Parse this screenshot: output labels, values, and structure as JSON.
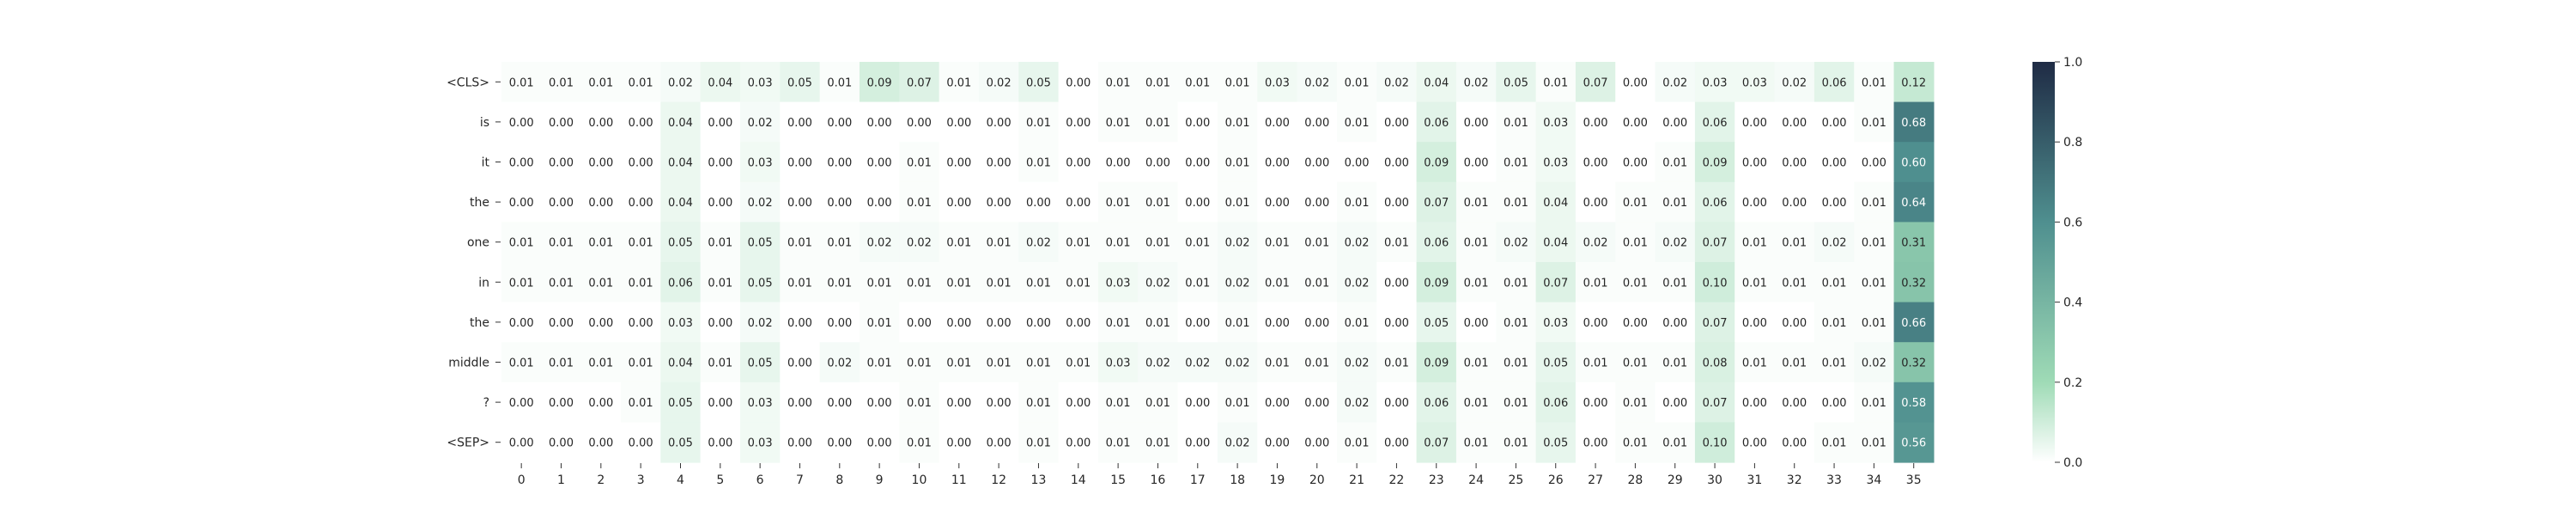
{
  "chart_data": {
    "type": "heatmap",
    "rows": [
      "<CLS>",
      "is",
      "it",
      "the",
      "one",
      "in",
      "the",
      "middle",
      "?",
      "<SEP>"
    ],
    "columns": [
      "0",
      "1",
      "2",
      "3",
      "4",
      "5",
      "6",
      "7",
      "8",
      "9",
      "10",
      "11",
      "12",
      "13",
      "14",
      "15",
      "16",
      "17",
      "18",
      "19",
      "20",
      "21",
      "22",
      "23",
      "24",
      "25",
      "26",
      "27",
      "28",
      "29",
      "30",
      "31",
      "32",
      "33",
      "34",
      "35"
    ],
    "values": [
      [
        0.01,
        0.01,
        0.01,
        0.01,
        0.02,
        0.04,
        0.03,
        0.05,
        0.01,
        0.09,
        0.07,
        0.01,
        0.02,
        0.05,
        0.0,
        0.01,
        0.01,
        0.01,
        0.01,
        0.03,
        0.02,
        0.01,
        0.02,
        0.04,
        0.02,
        0.05,
        0.01,
        0.07,
        0.0,
        0.02,
        0.03,
        0.03,
        0.02,
        0.06,
        0.01,
        0.12
      ],
      [
        0.0,
        0.0,
        0.0,
        0.0,
        0.04,
        0.0,
        0.02,
        0.0,
        0.0,
        0.0,
        0.0,
        0.0,
        0.0,
        0.01,
        0.0,
        0.01,
        0.01,
        0.0,
        0.01,
        0.0,
        0.0,
        0.01,
        0.0,
        0.06,
        0.0,
        0.01,
        0.03,
        0.0,
        0.0,
        0.0,
        0.06,
        0.0,
        0.0,
        0.0,
        0.01,
        0.68
      ],
      [
        0.0,
        0.0,
        0.0,
        0.0,
        0.04,
        0.0,
        0.03,
        0.0,
        0.0,
        0.0,
        0.01,
        0.0,
        0.0,
        0.01,
        0.0,
        0.0,
        0.0,
        0.0,
        0.01,
        0.0,
        0.0,
        0.0,
        0.0,
        0.09,
        0.0,
        0.01,
        0.03,
        0.0,
        0.0,
        0.01,
        0.09,
        0.0,
        0.0,
        0.0,
        0.0,
        0.6
      ],
      [
        0.0,
        0.0,
        0.0,
        0.0,
        0.04,
        0.0,
        0.02,
        0.0,
        0.0,
        0.0,
        0.01,
        0.0,
        0.0,
        0.0,
        0.0,
        0.01,
        0.01,
        0.0,
        0.01,
        0.0,
        0.0,
        0.01,
        0.0,
        0.07,
        0.01,
        0.01,
        0.04,
        0.0,
        0.01,
        0.01,
        0.06,
        0.0,
        0.0,
        0.0,
        0.01,
        0.64
      ],
      [
        0.01,
        0.01,
        0.01,
        0.01,
        0.05,
        0.01,
        0.05,
        0.01,
        0.01,
        0.02,
        0.02,
        0.01,
        0.01,
        0.02,
        0.01,
        0.01,
        0.01,
        0.01,
        0.02,
        0.01,
        0.01,
        0.02,
        0.01,
        0.06,
        0.01,
        0.02,
        0.04,
        0.02,
        0.01,
        0.02,
        0.07,
        0.01,
        0.01,
        0.02,
        0.01,
        0.31
      ],
      [
        0.01,
        0.01,
        0.01,
        0.01,
        0.06,
        0.01,
        0.05,
        0.01,
        0.01,
        0.01,
        0.01,
        0.01,
        0.01,
        0.01,
        0.01,
        0.03,
        0.02,
        0.01,
        0.02,
        0.01,
        0.01,
        0.02,
        0.0,
        0.09,
        0.01,
        0.01,
        0.07,
        0.01,
        0.01,
        0.01,
        0.1,
        0.01,
        0.01,
        0.01,
        0.01,
        0.32
      ],
      [
        0.0,
        0.0,
        0.0,
        0.0,
        0.03,
        0.0,
        0.02,
        0.0,
        0.0,
        0.01,
        0.0,
        0.0,
        0.0,
        0.0,
        0.0,
        0.01,
        0.01,
        0.0,
        0.01,
        0.0,
        0.0,
        0.01,
        0.0,
        0.05,
        0.0,
        0.01,
        0.03,
        0.0,
        0.0,
        0.0,
        0.07,
        0.0,
        0.0,
        0.01,
        0.01,
        0.66
      ],
      [
        0.01,
        0.01,
        0.01,
        0.01,
        0.04,
        0.01,
        0.05,
        0.0,
        0.02,
        0.01,
        0.01,
        0.01,
        0.01,
        0.01,
        0.01,
        0.03,
        0.02,
        0.02,
        0.02,
        0.01,
        0.01,
        0.02,
        0.01,
        0.09,
        0.01,
        0.01,
        0.05,
        0.01,
        0.01,
        0.01,
        0.08,
        0.01,
        0.01,
        0.01,
        0.02,
        0.32
      ],
      [
        0.0,
        0.0,
        0.0,
        0.01,
        0.05,
        0.0,
        0.03,
        0.0,
        0.0,
        0.0,
        0.01,
        0.0,
        0.0,
        0.01,
        0.0,
        0.01,
        0.01,
        0.0,
        0.01,
        0.0,
        0.0,
        0.02,
        0.0,
        0.06,
        0.01,
        0.01,
        0.06,
        0.0,
        0.01,
        0.0,
        0.07,
        0.0,
        0.0,
        0.0,
        0.01,
        0.58
      ],
      [
        0.0,
        0.0,
        0.0,
        0.0,
        0.05,
        0.0,
        0.03,
        0.0,
        0.0,
        0.0,
        0.01,
        0.0,
        0.0,
        0.01,
        0.0,
        0.01,
        0.01,
        0.0,
        0.02,
        0.0,
        0.0,
        0.01,
        0.0,
        0.07,
        0.01,
        0.01,
        0.05,
        0.0,
        0.01,
        0.01,
        0.1,
        0.0,
        0.0,
        0.01,
        0.01,
        0.56
      ]
    ],
    "colorbar": {
      "range": [
        0.0,
        1.0
      ],
      "ticks": [
        "0.0",
        "0.2",
        "0.4",
        "0.6",
        "0.8",
        "1.0"
      ]
    },
    "colormap": [
      "#ffffff",
      "#9fdbb6",
      "#4f8f8f",
      "#1f2b45"
    ],
    "title": "",
    "xlabel": "",
    "ylabel": ""
  }
}
